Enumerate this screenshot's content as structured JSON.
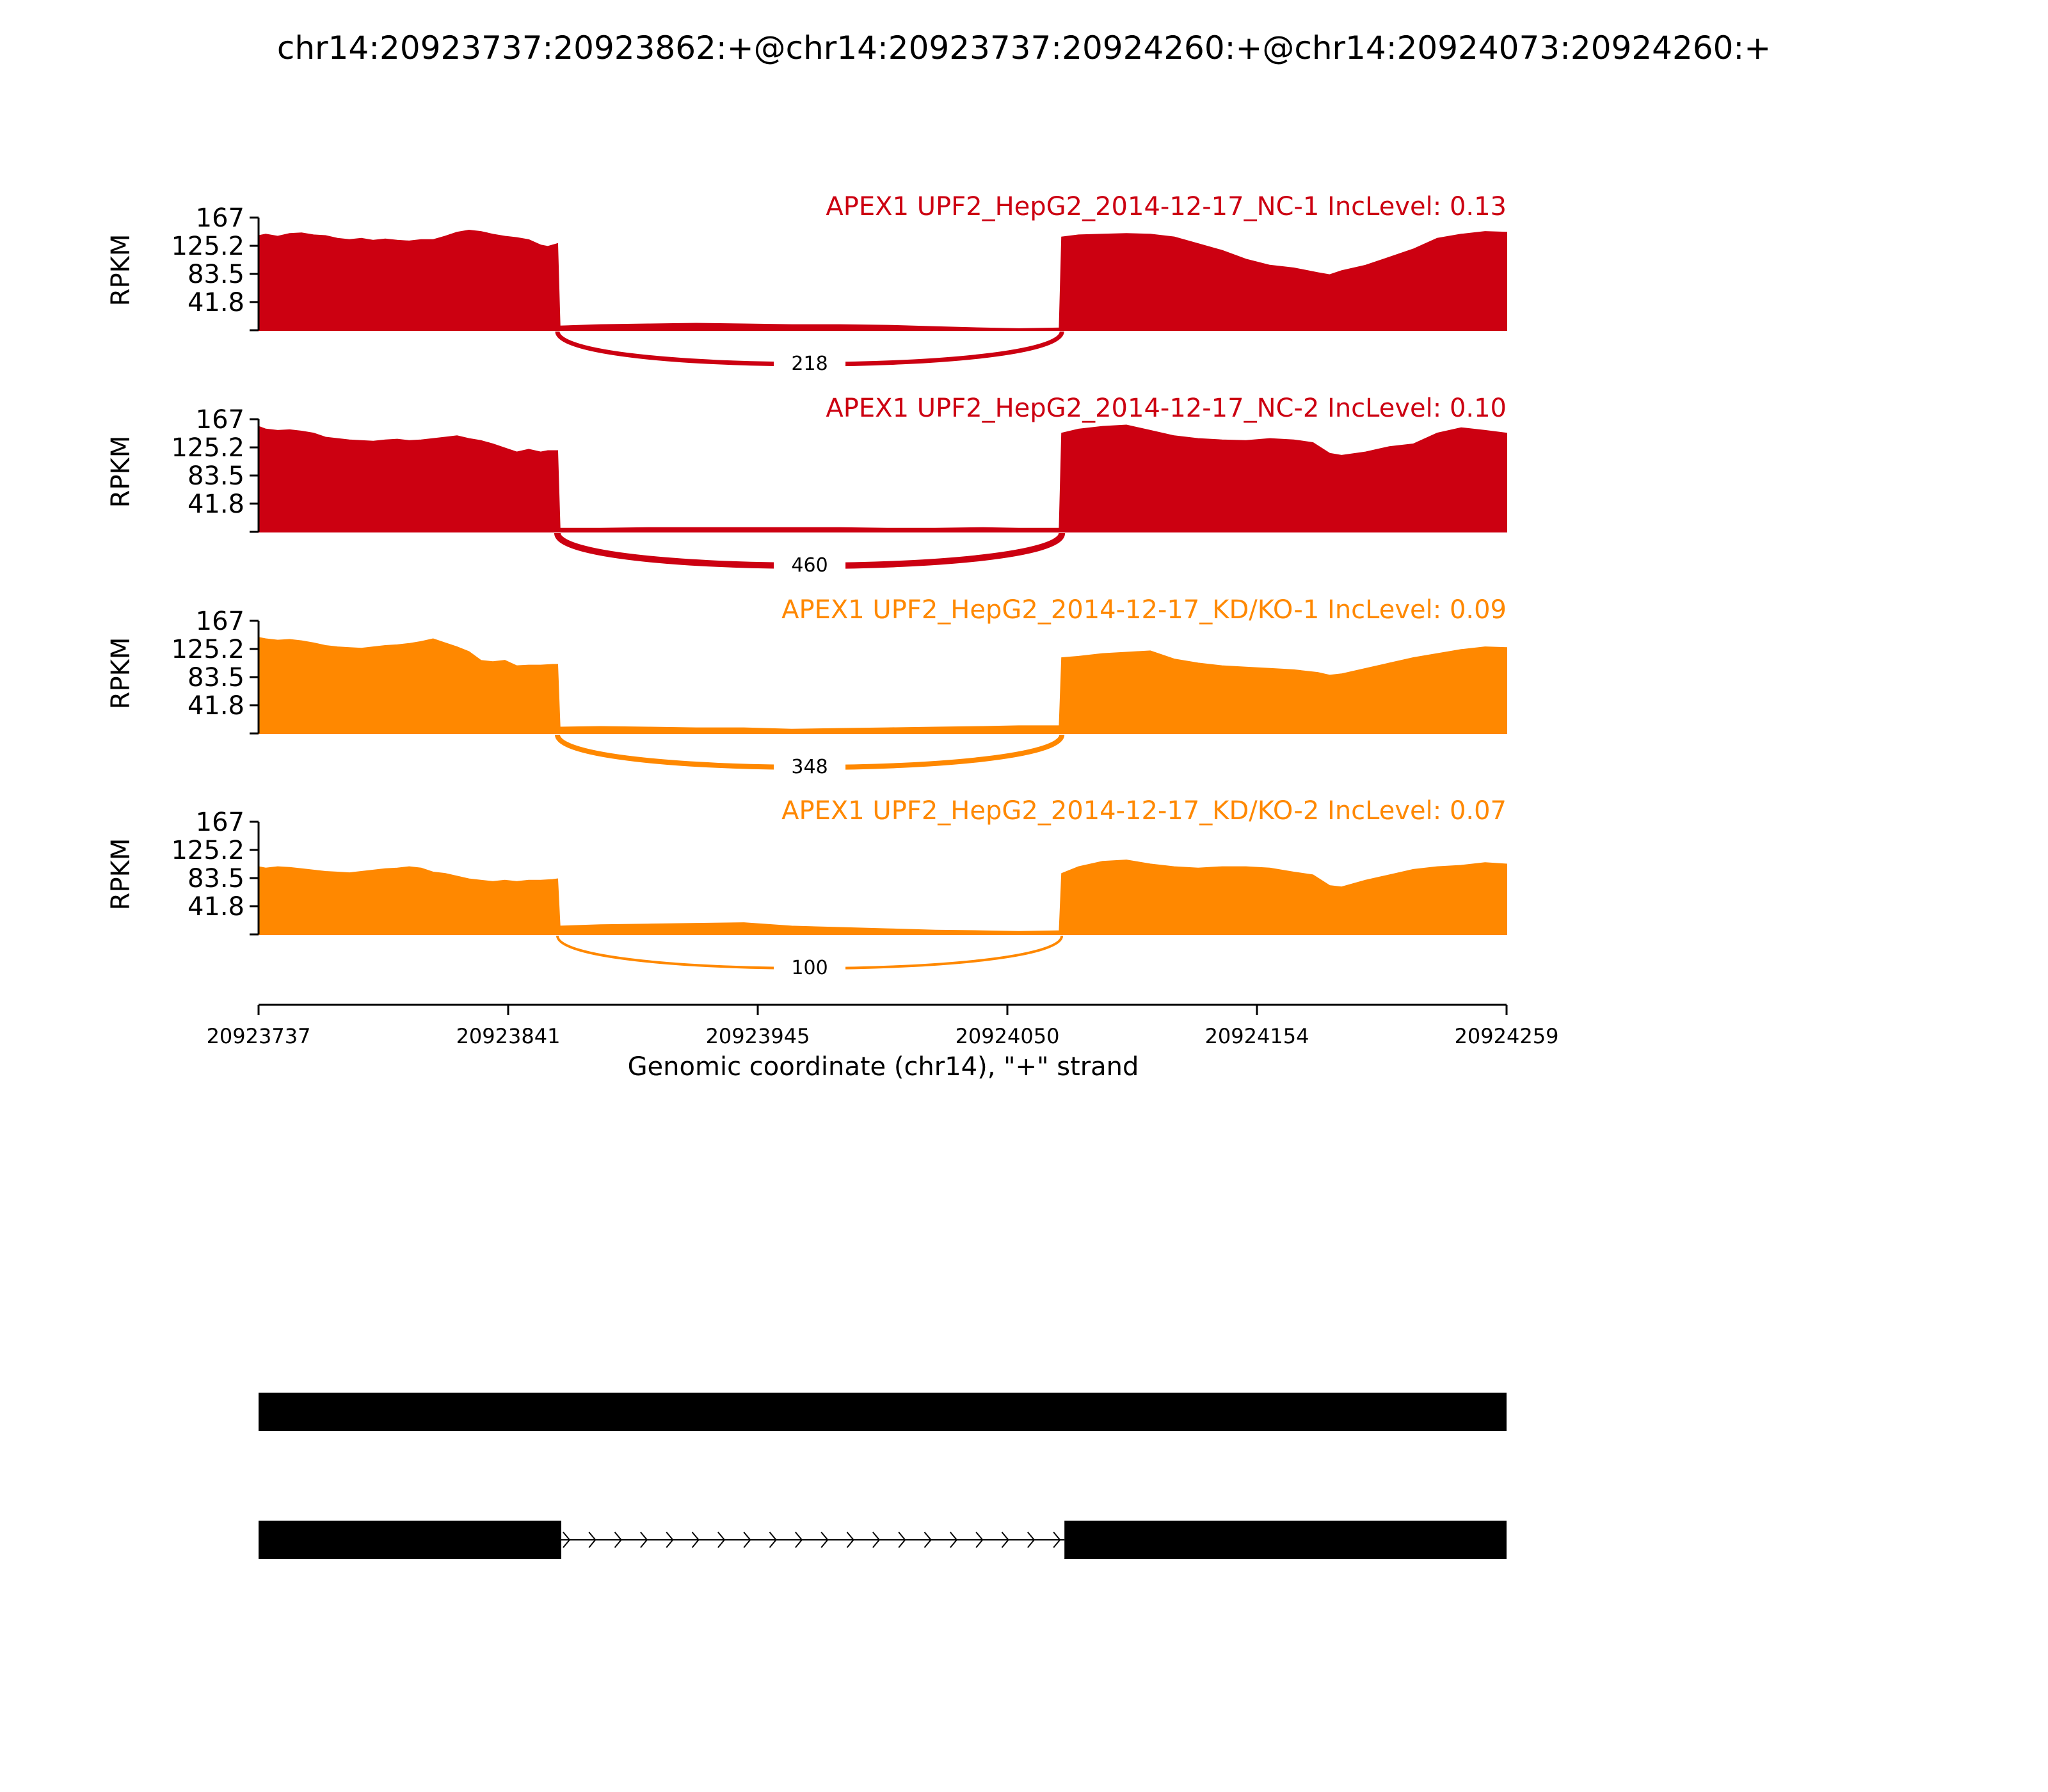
{
  "title": "chr14:20923737:20923862:+@chr14:20923737:20924260:+@chr14:20924073:20924260:+",
  "chart_data": {
    "type": "area",
    "title": "chr14:20923737:20923862:+@chr14:20923737:20924260:+@chr14:20924073:20924260:+",
    "ylabel": "RPKM",
    "xlabel": "Genomic coordinate (chr14), \"+\" strand",
    "x_ticks": [
      "20923737",
      "20923841",
      "20923945",
      "20924050",
      "20924154",
      "20924259"
    ],
    "xlim": [
      20923737,
      20924259
    ],
    "ylim": [
      0,
      167
    ],
    "y_ticks": [
      "167",
      "125.2",
      "83.5",
      "41.8"
    ],
    "colors": {
      "NC": "#cc0011",
      "KD": "#ff8800",
      "gene": "#000000"
    },
    "exons": [
      {
        "start": 20923737,
        "end": 20923862
      },
      {
        "start": 20924073,
        "end": 20924259
      }
    ],
    "series": [
      {
        "name": "APEX1 UPF2_HepG2_2014-12-17_NC-1 IncLevel: 0.13",
        "group": "NC",
        "junction_count": "218",
        "profile": [
          [
            20923737,
            140
          ],
          [
            20923740,
            142
          ],
          [
            20923745,
            139
          ],
          [
            20923750,
            143
          ],
          [
            20923755,
            144
          ],
          [
            20923760,
            141
          ],
          [
            20923765,
            140
          ],
          [
            20923770,
            136
          ],
          [
            20923775,
            134
          ],
          [
            20923780,
            136
          ],
          [
            20923785,
            133
          ],
          [
            20923790,
            135
          ],
          [
            20923795,
            133
          ],
          [
            20923800,
            132
          ],
          [
            20923805,
            134
          ],
          [
            20923810,
            134
          ],
          [
            20923815,
            139
          ],
          [
            20923820,
            145
          ],
          [
            20923825,
            148
          ],
          [
            20923830,
            146
          ],
          [
            20923835,
            142
          ],
          [
            20923840,
            139
          ],
          [
            20923845,
            137
          ],
          [
            20923850,
            134
          ],
          [
            20923855,
            126
          ],
          [
            20923858,
            124
          ],
          [
            20923860,
            126
          ],
          [
            20923862,
            128
          ],
          [
            20923863,
            6
          ],
          [
            20923880,
            8
          ],
          [
            20923900,
            9
          ],
          [
            20923920,
            10
          ],
          [
            20923940,
            9
          ],
          [
            20923960,
            8
          ],
          [
            20923980,
            8
          ],
          [
            20924000,
            7
          ],
          [
            20924020,
            5
          ],
          [
            20924040,
            3
          ],
          [
            20924055,
            2
          ],
          [
            20924072,
            3
          ],
          [
            20924073,
            138
          ],
          [
            20924080,
            141
          ],
          [
            20924090,
            142
          ],
          [
            20924100,
            143
          ],
          [
            20924110,
            142
          ],
          [
            20924120,
            138
          ],
          [
            20924130,
            128
          ],
          [
            20924140,
            118
          ],
          [
            20924150,
            105
          ],
          [
            20924160,
            96
          ],
          [
            20924170,
            92
          ],
          [
            20924180,
            85
          ],
          [
            20924185,
            82
          ],
          [
            20924190,
            88
          ],
          [
            20924200,
            96
          ],
          [
            20924210,
            108
          ],
          [
            20924220,
            120
          ],
          [
            20924230,
            136
          ],
          [
            20924240,
            142
          ],
          [
            20924250,
            146
          ],
          [
            20924259,
            145
          ]
        ]
      },
      {
        "name": "APEX1 UPF2_HepG2_2014-12-17_NC-2 IncLevel: 0.10",
        "group": "NC",
        "junction_count": "460",
        "profile": [
          [
            20923737,
            156
          ],
          [
            20923740,
            152
          ],
          [
            20923745,
            150
          ],
          [
            20923750,
            151
          ],
          [
            20923755,
            149
          ],
          [
            20923760,
            146
          ],
          [
            20923765,
            140
          ],
          [
            20923770,
            138
          ],
          [
            20923775,
            136
          ],
          [
            20923780,
            135
          ],
          [
            20923785,
            134
          ],
          [
            20923790,
            136
          ],
          [
            20923795,
            137
          ],
          [
            20923800,
            135
          ],
          [
            20923805,
            136
          ],
          [
            20923810,
            138
          ],
          [
            20923815,
            140
          ],
          [
            20923820,
            142
          ],
          [
            20923825,
            138
          ],
          [
            20923830,
            135
          ],
          [
            20923835,
            130
          ],
          [
            20923840,
            124
          ],
          [
            20923845,
            118
          ],
          [
            20923850,
            122
          ],
          [
            20923855,
            118
          ],
          [
            20923858,
            120
          ],
          [
            20923862,
            120
          ],
          [
            20923863,
            5
          ],
          [
            20923880,
            5
          ],
          [
            20923900,
            6
          ],
          [
            20923920,
            6
          ],
          [
            20923940,
            6
          ],
          [
            20923960,
            6
          ],
          [
            20923980,
            6
          ],
          [
            20924000,
            5
          ],
          [
            20924020,
            5
          ],
          [
            20924040,
            6
          ],
          [
            20924055,
            5
          ],
          [
            20924072,
            5
          ],
          [
            20924073,
            146
          ],
          [
            20924080,
            152
          ],
          [
            20924090,
            156
          ],
          [
            20924100,
            158
          ],
          [
            20924110,
            150
          ],
          [
            20924120,
            142
          ],
          [
            20924130,
            138
          ],
          [
            20924140,
            136
          ],
          [
            20924150,
            135
          ],
          [
            20924160,
            138
          ],
          [
            20924170,
            136
          ],
          [
            20924178,
            132
          ],
          [
            20924185,
            116
          ],
          [
            20924190,
            113
          ],
          [
            20924200,
            118
          ],
          [
            20924210,
            126
          ],
          [
            20924220,
            130
          ],
          [
            20924230,
            146
          ],
          [
            20924240,
            154
          ],
          [
            20924250,
            150
          ],
          [
            20924259,
            146
          ]
        ]
      },
      {
        "name": "APEX1 UPF2_HepG2_2014-12-17_KD/KO-1 IncLevel: 0.09",
        "group": "KD",
        "junction_count": "348",
        "profile": [
          [
            20923737,
            142
          ],
          [
            20923740,
            140
          ],
          [
            20923745,
            138
          ],
          [
            20923750,
            139
          ],
          [
            20923755,
            137
          ],
          [
            20923760,
            134
          ],
          [
            20923765,
            130
          ],
          [
            20923770,
            128
          ],
          [
            20923775,
            127
          ],
          [
            20923780,
            126
          ],
          [
            20923785,
            128
          ],
          [
            20923790,
            130
          ],
          [
            20923795,
            131
          ],
          [
            20923800,
            133
          ],
          [
            20923805,
            136
          ],
          [
            20923810,
            140
          ],
          [
            20923815,
            134
          ],
          [
            20923820,
            128
          ],
          [
            20923825,
            121
          ],
          [
            20923830,
            108
          ],
          [
            20923835,
            106
          ],
          [
            20923840,
            108
          ],
          [
            20923845,
            100
          ],
          [
            20923850,
            101
          ],
          [
            20923855,
            101
          ],
          [
            20923860,
            102
          ],
          [
            20923862,
            102
          ],
          [
            20923863,
            9
          ],
          [
            20923880,
            10
          ],
          [
            20923900,
            9
          ],
          [
            20923920,
            8
          ],
          [
            20923940,
            8
          ],
          [
            20923960,
            6
          ],
          [
            20923980,
            7
          ],
          [
            20924000,
            8
          ],
          [
            20924020,
            9
          ],
          [
            20924040,
            10
          ],
          [
            20924055,
            11
          ],
          [
            20924072,
            11
          ],
          [
            20924073,
            112
          ],
          [
            20924080,
            114
          ],
          [
            20924090,
            118
          ],
          [
            20924100,
            120
          ],
          [
            20924110,
            122
          ],
          [
            20924120,
            110
          ],
          [
            20924130,
            104
          ],
          [
            20924140,
            100
          ],
          [
            20924150,
            98
          ],
          [
            20924160,
            96
          ],
          [
            20924170,
            94
          ],
          [
            20924180,
            90
          ],
          [
            20924185,
            86
          ],
          [
            20924190,
            88
          ],
          [
            20924200,
            96
          ],
          [
            20924210,
            104
          ],
          [
            20924220,
            112
          ],
          [
            20924230,
            118
          ],
          [
            20924240,
            124
          ],
          [
            20924250,
            128
          ],
          [
            20924259,
            127
          ]
        ]
      },
      {
        "name": "APEX1 UPF2_HepG2_2014-12-17_KD/KO-2 IncLevel: 0.07",
        "group": "KD",
        "junction_count": "100",
        "profile": [
          [
            20923737,
            100
          ],
          [
            20923740,
            98
          ],
          [
            20923745,
            100
          ],
          [
            20923750,
            99
          ],
          [
            20923755,
            97
          ],
          [
            20923760,
            95
          ],
          [
            20923765,
            93
          ],
          [
            20923770,
            92
          ],
          [
            20923775,
            91
          ],
          [
            20923780,
            93
          ],
          [
            20923785,
            95
          ],
          [
            20923790,
            97
          ],
          [
            20923795,
            98
          ],
          [
            20923800,
            100
          ],
          [
            20923805,
            98
          ],
          [
            20923810,
            92
          ],
          [
            20923815,
            90
          ],
          [
            20923820,
            86
          ],
          [
            20923825,
            82
          ],
          [
            20923830,
            80
          ],
          [
            20923835,
            78
          ],
          [
            20923840,
            80
          ],
          [
            20923845,
            78
          ],
          [
            20923850,
            80
          ],
          [
            20923855,
            80
          ],
          [
            20923860,
            81
          ],
          [
            20923862,
            82
          ],
          [
            20923863,
            12
          ],
          [
            20923880,
            14
          ],
          [
            20923900,
            15
          ],
          [
            20923920,
            16
          ],
          [
            20923940,
            17
          ],
          [
            20923960,
            12
          ],
          [
            20923980,
            10
          ],
          [
            20924000,
            8
          ],
          [
            20924020,
            6
          ],
          [
            20924040,
            5
          ],
          [
            20924055,
            4
          ],
          [
            20924072,
            5
          ],
          [
            20924073,
            90
          ],
          [
            20924080,
            100
          ],
          [
            20924090,
            108
          ],
          [
            20924100,
            110
          ],
          [
            20924110,
            104
          ],
          [
            20924120,
            100
          ],
          [
            20924130,
            98
          ],
          [
            20924140,
            100
          ],
          [
            20924150,
            100
          ],
          [
            20924160,
            98
          ],
          [
            20924170,
            92
          ],
          [
            20924178,
            88
          ],
          [
            20924185,
            72
          ],
          [
            20924190,
            70
          ],
          [
            20924200,
            80
          ],
          [
            20924210,
            88
          ],
          [
            20924220,
            96
          ],
          [
            20924230,
            100
          ],
          [
            20924240,
            102
          ],
          [
            20924250,
            106
          ],
          [
            20924259,
            104
          ]
        ]
      }
    ]
  }
}
